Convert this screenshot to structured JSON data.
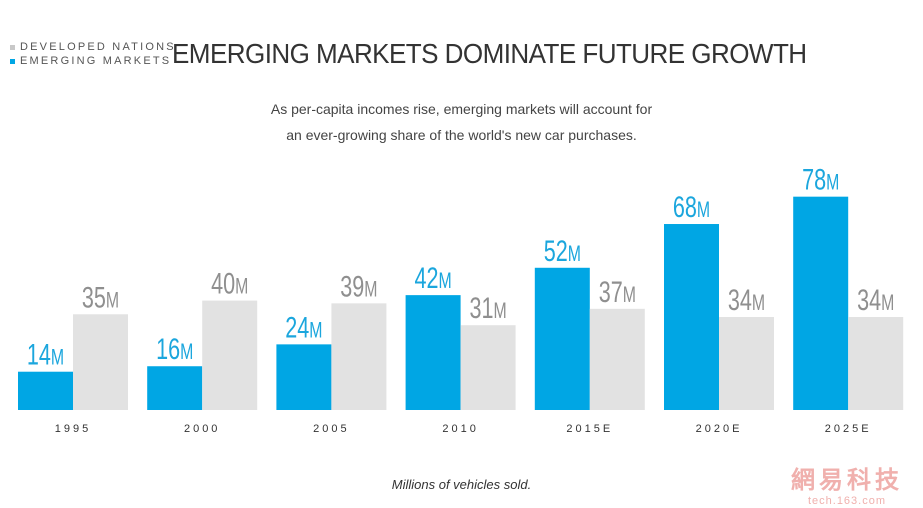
{
  "title": "EMERGING MARKETS DOMINATE FUTURE GROWTH",
  "subtitle_lines": [
    "As per-capita incomes rise, emerging markets will account for",
    "an ever-growing share of the world's new car purchases."
  ],
  "footnote": "Millions of vehicles sold.",
  "watermark": {
    "main": "網易科技",
    "url": "tech.163.com"
  },
  "colors": {
    "emerging": "#00A6E4",
    "developed": "#E2E2E2",
    "emerging_label": "#1BA6DD",
    "developed_label": "#8F8F8F"
  },
  "chart_data": {
    "type": "bar",
    "categories": [
      "1995",
      "2000",
      "2005",
      "2010",
      "2015E",
      "2020E",
      "2025E"
    ],
    "series": [
      {
        "name": "EMERGING MARKETS",
        "values": [
          14,
          16,
          24,
          42,
          52,
          68,
          78
        ],
        "labels": [
          "14M",
          "16M",
          "24M",
          "42M",
          "52M",
          "68M",
          "78M"
        ]
      },
      {
        "name": "DEVELOPED NATIONS",
        "values": [
          35,
          40,
          39,
          31,
          37,
          34,
          34
        ],
        "labels": [
          "35M",
          "40M",
          "39M",
          "31M",
          "37M",
          "34M",
          "34M"
        ]
      }
    ],
    "unit": "M",
    "legend_position": "top-left",
    "grid": false
  }
}
